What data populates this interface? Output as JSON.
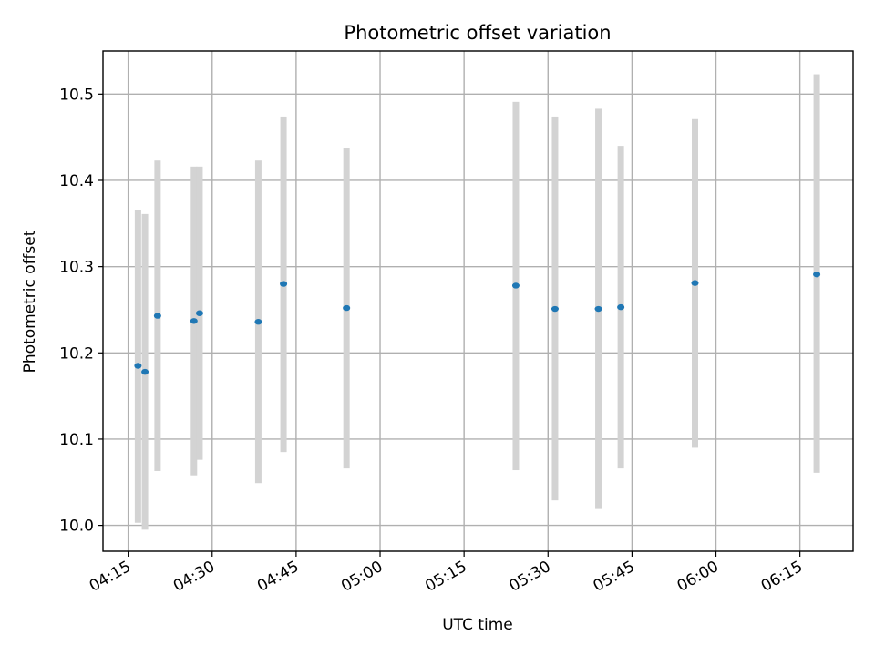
{
  "chart_data": {
    "type": "scatter",
    "title": "Photometric offset variation",
    "xlabel": "UTC time",
    "ylabel": "Photometric offset",
    "x_ticks": [
      "04:15",
      "04:30",
      "04:45",
      "05:00",
      "05:15",
      "05:30",
      "05:45",
      "06:00",
      "06:15"
    ],
    "y_ticks": [
      "10.0",
      "10.1",
      "10.2",
      "10.3",
      "10.4",
      "10.5"
    ],
    "xlim": [
      "04:10:30",
      "06:24:30"
    ],
    "ylim": [
      9.97,
      10.55
    ],
    "grid": true,
    "colors": {
      "point": "#1f77b4",
      "errorbar": "#d3d3d3",
      "grid": "#b0b0b0"
    },
    "points": [
      {
        "x": "04:16:45",
        "y": 10.185,
        "ylo": 10.003,
        "yhi": 10.366
      },
      {
        "x": "04:18:00",
        "y": 10.178,
        "ylo": 9.995,
        "yhi": 10.361
      },
      {
        "x": "04:20:15",
        "y": 10.243,
        "ylo": 10.063,
        "yhi": 10.423
      },
      {
        "x": "04:26:45",
        "y": 10.237,
        "ylo": 10.058,
        "yhi": 10.416
      },
      {
        "x": "04:27:45",
        "y": 10.246,
        "ylo": 10.076,
        "yhi": 10.416
      },
      {
        "x": "04:38:15",
        "y": 10.236,
        "ylo": 10.049,
        "yhi": 10.423
      },
      {
        "x": "04:42:45",
        "y": 10.28,
        "ylo": 10.085,
        "yhi": 10.474
      },
      {
        "x": "04:54:00",
        "y": 10.252,
        "ylo": 10.066,
        "yhi": 10.438
      },
      {
        "x": "05:24:15",
        "y": 10.278,
        "ylo": 10.064,
        "yhi": 10.491
      },
      {
        "x": "05:31:15",
        "y": 10.251,
        "ylo": 10.029,
        "yhi": 10.474
      },
      {
        "x": "05:39:00",
        "y": 10.251,
        "ylo": 10.019,
        "yhi": 10.483
      },
      {
        "x": "05:43:00",
        "y": 10.253,
        "ylo": 10.066,
        "yhi": 10.44
      },
      {
        "x": "05:56:15",
        "y": 10.281,
        "ylo": 10.09,
        "yhi": 10.471
      },
      {
        "x": "06:18:00",
        "y": 10.291,
        "ylo": 10.061,
        "yhi": 10.523
      }
    ]
  }
}
